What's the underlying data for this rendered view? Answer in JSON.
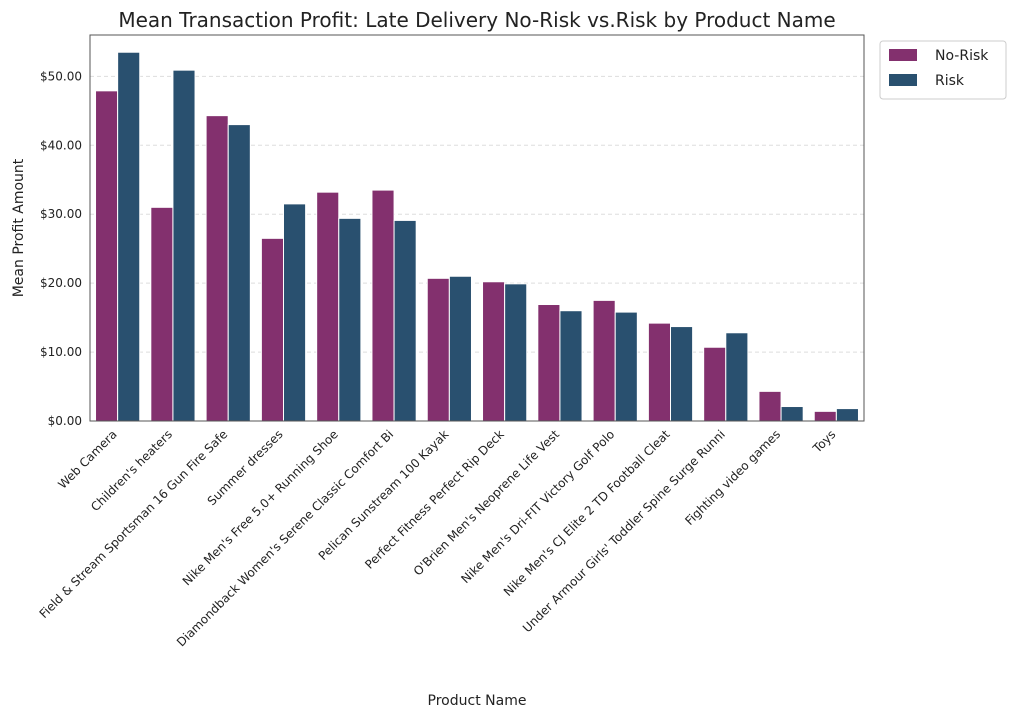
{
  "chart_data": {
    "type": "bar",
    "title": "Mean Transaction Profit: Late Delivery No-Risk vs.Risk by Product Name",
    "xlabel": "Product Name",
    "ylabel": "Mean Profit Amount",
    "ylim": [
      0,
      56
    ],
    "yticks": [
      0,
      10,
      20,
      30,
      40,
      50
    ],
    "ytick_labels": [
      "$0.00",
      "$10.00",
      "$20.00",
      "$30.00",
      "$40.00",
      "$50.00"
    ],
    "grid": "y-dashed",
    "legend_position": "outside-top-right",
    "categories": [
      "Web Camera",
      "Children's heaters",
      "Field & Stream Sportsman 16 Gun Fire Safe",
      "Summer dresses",
      "Nike Men's Free 5.0+ Running Shoe",
      "Diamondback Women's Serene Classic Comfort Bi",
      "Pelican Sunstream 100 Kayak",
      "Perfect Fitness Perfect Rip Deck",
      "O'Brien Men's Neoprene Life Vest",
      "Nike Men's Dri-FIT Victory Golf Polo",
      "Nike Men's CJ Elite 2 TD Football Cleat",
      "Under Armour Girls' Toddler Spine Surge Runni",
      "Fighting video games",
      "Toys"
    ],
    "series": [
      {
        "name": "No-Risk",
        "color": "#83306e",
        "values": [
          47.9,
          31.0,
          44.3,
          26.5,
          33.2,
          33.5,
          20.7,
          20.2,
          16.9,
          17.5,
          14.2,
          10.7,
          4.3,
          1.4
        ]
      },
      {
        "name": "Risk",
        "color": "#29506f",
        "values": [
          53.5,
          50.9,
          43.0,
          31.5,
          29.4,
          29.1,
          21.0,
          19.9,
          16.0,
          15.8,
          13.7,
          12.8,
          2.1,
          1.8
        ]
      }
    ]
  }
}
